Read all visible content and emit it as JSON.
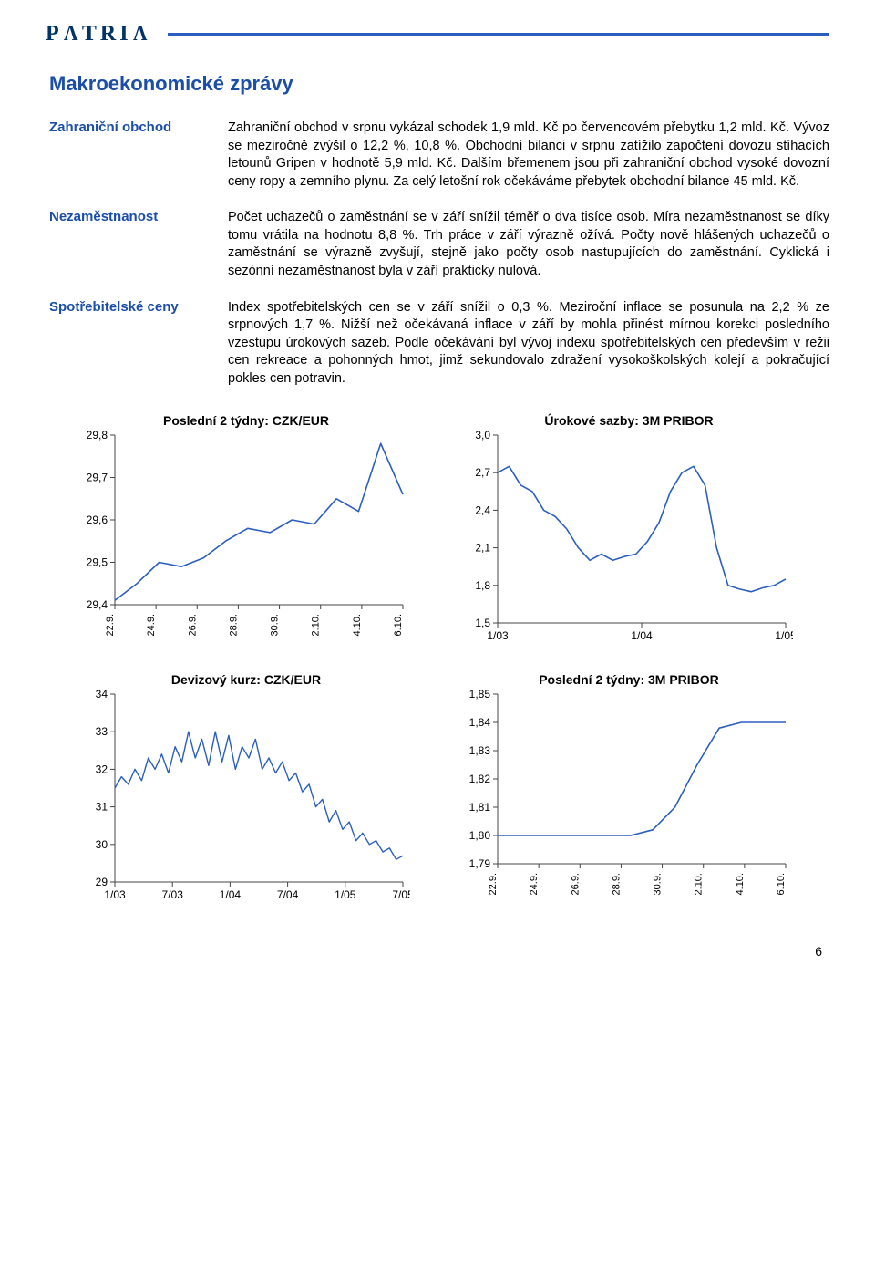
{
  "header": {
    "logo_text": "PΛTRIΛ"
  },
  "page_title": "Makroekonomické zprávy",
  "sections": {
    "0": {
      "label": "Zahraniční obchod",
      "body": "Zahraniční obchod v srpnu vykázal schodek 1,9 mld. Kč po červencovém přebytku 1,2 mld. Kč. Vývoz se meziročně zvýšil o 12,2 %, 10,8 %. Obchodní bilanci v srpnu zatížilo započtení dovozu stíhacích letounů Gripen v hodnotě 5,9 mld. Kč. Dalším břemenem jsou při zahraniční obchod vysoké dovozní ceny ropy a zemního plynu. Za celý letošní rok očekáváme přebytek obchodní bilance 45 mld. Kč."
    },
    "1": {
      "label": "Nezaměstnanost",
      "body": "Počet uchazečů o zaměstnání se v září snížil téměř o dva tisíce osob. Míra nezaměstnanost se díky tomu vrátila na hodnotu 8,8 %. Trh práce v září výrazně ožívá. Počty nově hlášených uchazečů o zaměstnání se výrazně zvyšují, stejně jako počty osob nastupujících do zaměstnání. Cyklická i sezónní nezaměstnanost byla v září prakticky nulová."
    },
    "2": {
      "label": "Spotřebitelské ceny",
      "body": "Index spotřebitelských cen se v září snížil o 0,3 %. Meziroční inflace se posunula na 2,2 % ze srpnových 1,7 %. Nižší než očekávaná inflace v září by mohla přinést mírnou korekci posledního vzestupu úrokových sazeb. Podle očekávání byl vývoj indexu spotřebitelských cen především v režii cen rekreace a pohonných hmot, jimž sekundovalo zdražení vysokoškolských kolejí a pokračující pokles cen potravin."
    }
  },
  "charts": {
    "0": {
      "title": "Poslední 2 týdny: CZK/EUR",
      "line_color": "#2a5fbf",
      "axis_color": "#444444",
      "background_color": "#ffffff",
      "yticks": [
        "29,8",
        "29,7",
        "29,6",
        "29,5",
        "29,4"
      ],
      "ymin": 29.4,
      "ymax": 29.8,
      "xticks": [
        "22.9.",
        "24.9.",
        "26.9.",
        "28.9.",
        "30.9.",
        "2.10.",
        "4.10.",
        "6.10."
      ],
      "line_width": 1.6,
      "y_values": [
        29.41,
        29.45,
        29.5,
        29.49,
        29.51,
        29.55,
        29.58,
        29.57,
        29.6,
        29.59,
        29.65,
        29.62,
        29.78,
        29.66
      ]
    },
    "1": {
      "title": "Úrokové sazby: 3M PRIBOR",
      "line_color": "#2a5fbf",
      "axis_color": "#444444",
      "background_color": "#ffffff",
      "yticks": [
        "3,0",
        "2,7",
        "2,4",
        "2,1",
        "1,8",
        "1,5"
      ],
      "ymin": 1.5,
      "ymax": 3.0,
      "xticks": [
        "1/03",
        "1/04",
        "1/05"
      ],
      "line_width": 1.6,
      "y_values": [
        2.7,
        2.75,
        2.6,
        2.55,
        2.4,
        2.35,
        2.25,
        2.1,
        2.0,
        2.05,
        2.0,
        2.03,
        2.05,
        2.15,
        2.3,
        2.55,
        2.7,
        2.75,
        2.6,
        2.1,
        1.8,
        1.77,
        1.75,
        1.78,
        1.8,
        1.85
      ]
    },
    "2": {
      "title": "Devizový kurz: CZK/EUR",
      "line_color": "#2a5fbf",
      "axis_color": "#444444",
      "background_color": "#ffffff",
      "yticks": [
        "34",
        "33",
        "32",
        "31",
        "30",
        "29"
      ],
      "ymin": 29,
      "ymax": 34,
      "xticks": [
        "1/03",
        "7/03",
        "1/04",
        "7/04",
        "1/05",
        "7/05"
      ],
      "line_width": 1.4,
      "y_values": [
        31.5,
        31.8,
        31.6,
        32.0,
        31.7,
        32.3,
        32.0,
        32.4,
        31.9,
        32.6,
        32.2,
        33.0,
        32.3,
        32.8,
        32.1,
        33.0,
        32.2,
        32.9,
        32.0,
        32.6,
        32.3,
        32.8,
        32.0,
        32.3,
        31.9,
        32.2,
        31.7,
        31.9,
        31.4,
        31.6,
        31.0,
        31.2,
        30.6,
        30.9,
        30.4,
        30.6,
        30.1,
        30.3,
        30.0,
        30.1,
        29.8,
        29.9,
        29.6,
        29.7
      ]
    },
    "3": {
      "title": "Poslední 2 týdny: 3M PRIBOR",
      "line_color": "#2a5fbf",
      "axis_color": "#444444",
      "background_color": "#ffffff",
      "yticks": [
        "1,85",
        "1,84",
        "1,83",
        "1,82",
        "1,81",
        "1,80",
        "1,79"
      ],
      "ymin": 1.79,
      "ymax": 1.85,
      "xticks": [
        "22.9.",
        "24.9.",
        "26.9.",
        "28.9.",
        "30.9.",
        "2.10.",
        "4.10.",
        "6.10."
      ],
      "line_width": 1.6,
      "y_values": [
        1.8,
        1.8,
        1.8,
        1.8,
        1.8,
        1.8,
        1.8,
        1.802,
        1.81,
        1.825,
        1.838,
        1.84,
        1.84,
        1.84
      ]
    }
  },
  "page_number": "6"
}
